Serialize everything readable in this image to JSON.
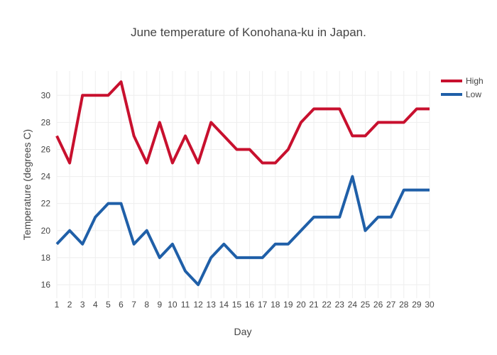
{
  "chart_data": {
    "type": "line",
    "title": "June temperature of Konohana-ku in Japan.",
    "xlabel": "Day",
    "ylabel": "Temperature (degrees C)",
    "x": [
      1,
      2,
      3,
      4,
      5,
      6,
      7,
      8,
      9,
      10,
      11,
      12,
      13,
      14,
      15,
      16,
      17,
      18,
      19,
      20,
      21,
      22,
      23,
      24,
      25,
      26,
      27,
      28,
      29,
      30
    ],
    "x_ticks": [
      "1",
      "2",
      "3",
      "4",
      "5",
      "6",
      "7",
      "8",
      "9",
      "10",
      "11",
      "12",
      "13",
      "14",
      "15",
      "16",
      "17",
      "18",
      "19",
      "20",
      "21",
      "22",
      "23",
      "24",
      "25",
      "26",
      "27",
      "28",
      "29",
      "30"
    ],
    "y_ticks": [
      16,
      18,
      20,
      22,
      24,
      26,
      28,
      30
    ],
    "xlim": [
      1,
      30
    ],
    "ylim": [
      15,
      31.8
    ],
    "grid": true,
    "legend": "top-right",
    "series": [
      {
        "name": "High",
        "color": "#c8102e",
        "values": [
          27,
          25,
          30,
          30,
          30,
          31,
          27,
          25,
          28,
          25,
          27,
          25,
          28,
          27,
          26,
          26,
          25,
          25,
          26,
          28,
          29,
          29,
          29,
          27,
          27,
          28,
          28,
          28,
          29,
          29
        ]
      },
      {
        "name": "Low",
        "color": "#1f5fa8",
        "values": [
          19,
          20,
          19,
          21,
          22,
          22,
          19,
          20,
          18,
          19,
          17,
          16,
          18,
          19,
          18,
          18,
          18,
          19,
          19,
          20,
          21,
          21,
          21,
          24,
          20,
          21,
          21,
          23,
          23,
          23
        ]
      }
    ]
  }
}
